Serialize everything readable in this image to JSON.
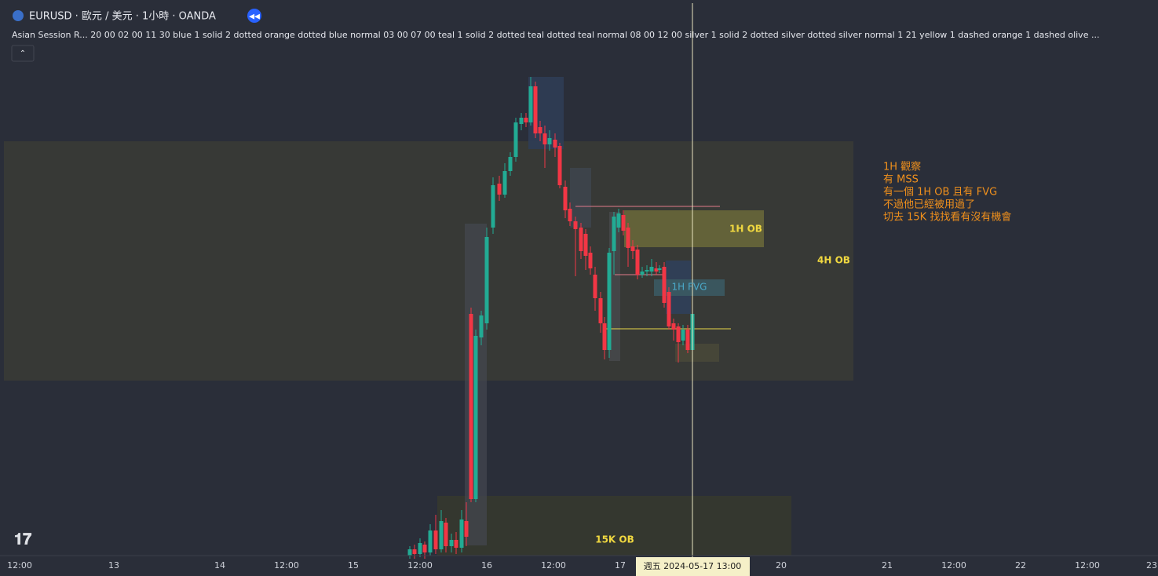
{
  "header": {
    "title": "EURUSD · 歐元 / 美元 · 1小時 · OANDA",
    "indicator": "Asian Session R...  20 00 02 00 11 30 blue 1 solid 2 dotted orange dotted blue normal 03 00 07 00 teal 1 solid 2 dotted teal dotted teal normal 08 00 12 00 silver 1 solid 2 dotted silver dotted silver normal 1 21 yellow 1 dashed orange 1 dashed olive ..."
  },
  "zones": {
    "h1_ob": "1H OB",
    "h1_fvg": "1H FVG",
    "h4_ob": "4H OB",
    "k15_ob": "15K OB"
  },
  "note": [
    "1H 觀察",
    "有 MSS",
    "有一個 1H OB 且有 FVG",
    "不過他已經被用過了",
    "切去 15K 找找看有沒有機會"
  ],
  "time_axis": [
    "12:00",
    "13",
    "14",
    "12:00",
    "15",
    "12:00",
    "16",
    "12:00",
    "17",
    "20",
    "21",
    "12:00",
    "22",
    "12:00",
    "23"
  ],
  "crosshair": "週五 2024-05-17   13:00"
}
